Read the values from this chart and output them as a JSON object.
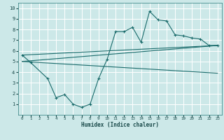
{
  "xlabel": "Humidex (Indice chaleur)",
  "bg_color": "#cce8e8",
  "grid_color": "#ffffff",
  "line_color": "#1a6b6b",
  "xlim": [
    -0.5,
    23.5
  ],
  "ylim": [
    0,
    10.5
  ],
  "xticks": [
    0,
    1,
    2,
    3,
    4,
    5,
    6,
    7,
    8,
    9,
    10,
    11,
    12,
    13,
    14,
    15,
    16,
    17,
    18,
    19,
    20,
    21,
    22,
    23
  ],
  "yticks": [
    1,
    2,
    3,
    4,
    5,
    6,
    7,
    8,
    9,
    10
  ],
  "curve1_x": [
    0,
    1,
    3,
    4,
    5,
    6,
    7,
    8,
    9,
    10,
    11,
    12,
    13,
    14,
    15,
    16,
    17,
    18,
    19,
    20,
    21,
    22,
    23
  ],
  "curve1_y": [
    5.6,
    4.9,
    3.4,
    1.6,
    1.9,
    1.0,
    0.7,
    1.0,
    3.4,
    5.2,
    7.8,
    7.8,
    8.2,
    6.8,
    9.7,
    8.9,
    8.8,
    7.5,
    7.4,
    7.2,
    7.1,
    6.5,
    6.5
  ],
  "line1_x": [
    0,
    23
  ],
  "line1_y": [
    5.6,
    6.5
  ],
  "line2_x": [
    0,
    23
  ],
  "line2_y": [
    5.0,
    6.5
  ],
  "line3_x": [
    0,
    23
  ],
  "line3_y": [
    5.0,
    3.9
  ]
}
